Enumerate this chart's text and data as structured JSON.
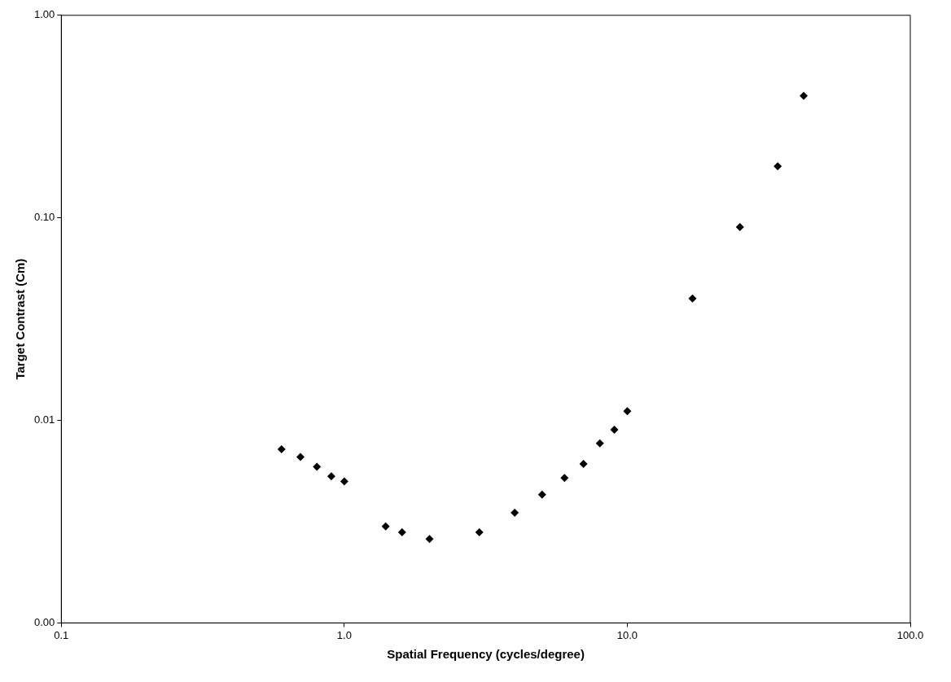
{
  "chart_data": {
    "type": "scatter",
    "xlabel": "Spatial Frequency (cycles/degree)",
    "ylabel": "Target Contrast (Cm)",
    "x": [
      0.6,
      0.7,
      0.8,
      0.9,
      1.0,
      1.4,
      1.6,
      2.0,
      3.0,
      4.0,
      5.0,
      6.0,
      7.0,
      8.0,
      9.0,
      10.0,
      17,
      25,
      34,
      42
    ],
    "series": [
      {
        "color": "#000000",
        "values": [
          0.0072,
          0.0066,
          0.0059,
          0.0053,
          0.005,
          0.003,
          0.0028,
          0.0026,
          0.0028,
          0.0035,
          0.0043,
          0.0052,
          0.0061,
          0.0077,
          0.009,
          0.0111,
          0.04,
          0.09,
          0.18,
          0.4
        ]
      }
    ],
    "log": "xy",
    "xlim": [
      0.1,
      100
    ],
    "ylim": [
      0.001,
      1
    ],
    "xticks": [
      {
        "value": 0.1,
        "label": "0.1"
      },
      {
        "value": 1,
        "label": "1.0"
      },
      {
        "value": 10,
        "label": "10.0"
      },
      {
        "value": 100,
        "label": "100.0"
      }
    ],
    "yticks": [
      {
        "value": 0.001,
        "label": "0.00"
      },
      {
        "value": 0.01,
        "label": "0.01"
      },
      {
        "value": 0.1,
        "label": "0.10"
      },
      {
        "value": 1,
        "label": "1.00"
      }
    ],
    "grid": false,
    "legend": false,
    "marker": "diamond"
  }
}
